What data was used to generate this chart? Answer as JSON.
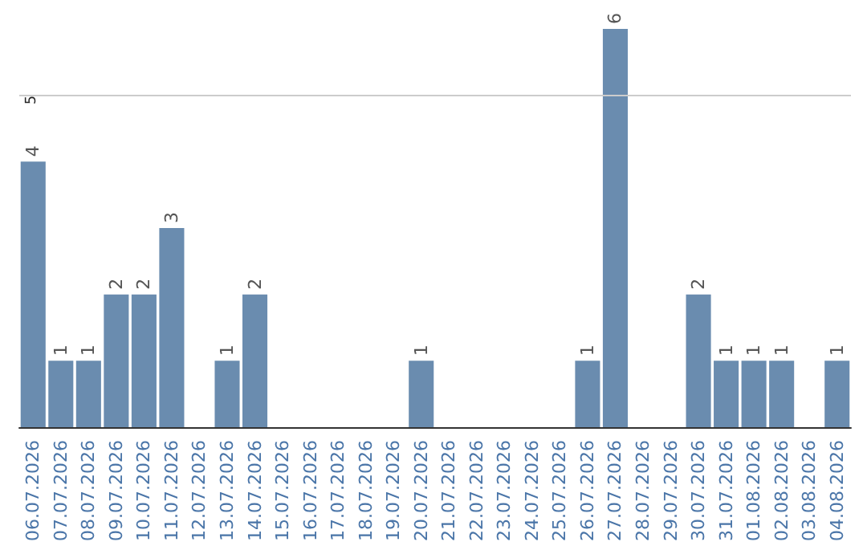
{
  "chart_data": {
    "type": "bar",
    "categories": [
      "06.07.2026",
      "07.07.2026",
      "08.07.2026",
      "09.07.2026",
      "10.07.2026",
      "11.07.2026",
      "12.07.2026",
      "13.07.2026",
      "14.07.2026",
      "15.07.2026",
      "16.07.2026",
      "17.07.2026",
      "18.07.2026",
      "19.07.2026",
      "20.07.2026",
      "21.07.2026",
      "22.07.2026",
      "23.07.2026",
      "24.07.2026",
      "25.07.2026",
      "26.07.2026",
      "27.07.2026",
      "28.07.2026",
      "29.07.2026",
      "30.07.2026",
      "31.07.2026",
      "01.08.2026",
      "02.08.2026",
      "03.08.2026",
      "04.08.2026"
    ],
    "values": [
      4,
      1,
      1,
      2,
      2,
      3,
      0,
      1,
      2,
      0,
      0,
      0,
      0,
      0,
      1,
      0,
      0,
      0,
      0,
      0,
      1,
      6,
      0,
      0,
      2,
      1,
      1,
      1,
      0,
      1
    ],
    "value_labels": [
      "4",
      "1",
      "1",
      "2",
      "2",
      "3",
      null,
      "1",
      "2",
      null,
      null,
      null,
      null,
      null,
      "1",
      null,
      null,
      null,
      null,
      null,
      "1",
      "6",
      null,
      null,
      "2",
      "1",
      "1",
      "1",
      null,
      "1"
    ],
    "color": "#6a8caf",
    "ref_lines": [
      {
        "axis": "y",
        "value": 5,
        "label": "5",
        "color": "#cccccc"
      }
    ]
  }
}
